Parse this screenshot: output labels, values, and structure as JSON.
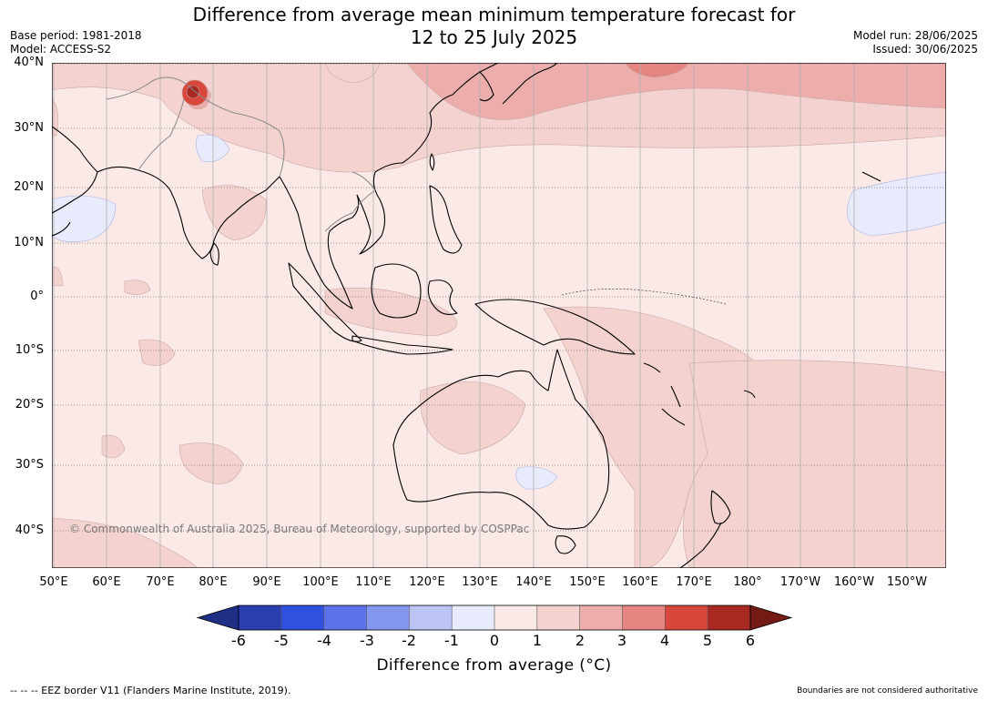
{
  "title_line1": "Difference from average mean minimum temperature forecast for",
  "title_line2": "12 to 25 July 2025",
  "base_period": "Base period: 1981-2018",
  "model": "Model: ACCESS-S2",
  "model_run": "Model run: 28/06/2025",
  "issued": "Issued: 30/06/2025",
  "lat_labels": [
    "40°N",
    "30°N",
    "20°N",
    "10°N",
    "0°",
    "10°S",
    "20°S",
    "30°S",
    "40°S"
  ],
  "lon_labels": [
    "50°E",
    "60°E",
    "70°E",
    "80°E",
    "90°E",
    "100°E",
    "110°E",
    "120°E",
    "130°E",
    "140°E",
    "150°E",
    "160°E",
    "170°E",
    "180°",
    "170°W",
    "160°W",
    "150°W"
  ],
  "copyright": "© Commonwealth of Australia 2025, Bureau of Meteorology, supported by COSPPac",
  "colorbar": {
    "ticks": [
      "-6",
      "-5",
      "-4",
      "-3",
      "-2",
      "-1",
      "0",
      "1",
      "2",
      "3",
      "4",
      "5",
      "6"
    ],
    "colors": [
      "#1f2f85",
      "#2a3eb0",
      "#3050e0",
      "#5b72e8",
      "#8596ee",
      "#bcc3f5",
      "#e8ebfb",
      "#fbe9e8",
      "#f4d2d0",
      "#ecadab",
      "#e48581",
      "#d8473c",
      "#a82822",
      "#741b16"
    ],
    "label": "Difference from average ($^{\\circ}$C)",
    "label_display": "Difference from average (°C)"
  },
  "footer_left": "-- -- -- EEZ border V11 (Flanders Marine Institute, 2019).",
  "footer_right": "Boundaries are not considered authoritative"
}
